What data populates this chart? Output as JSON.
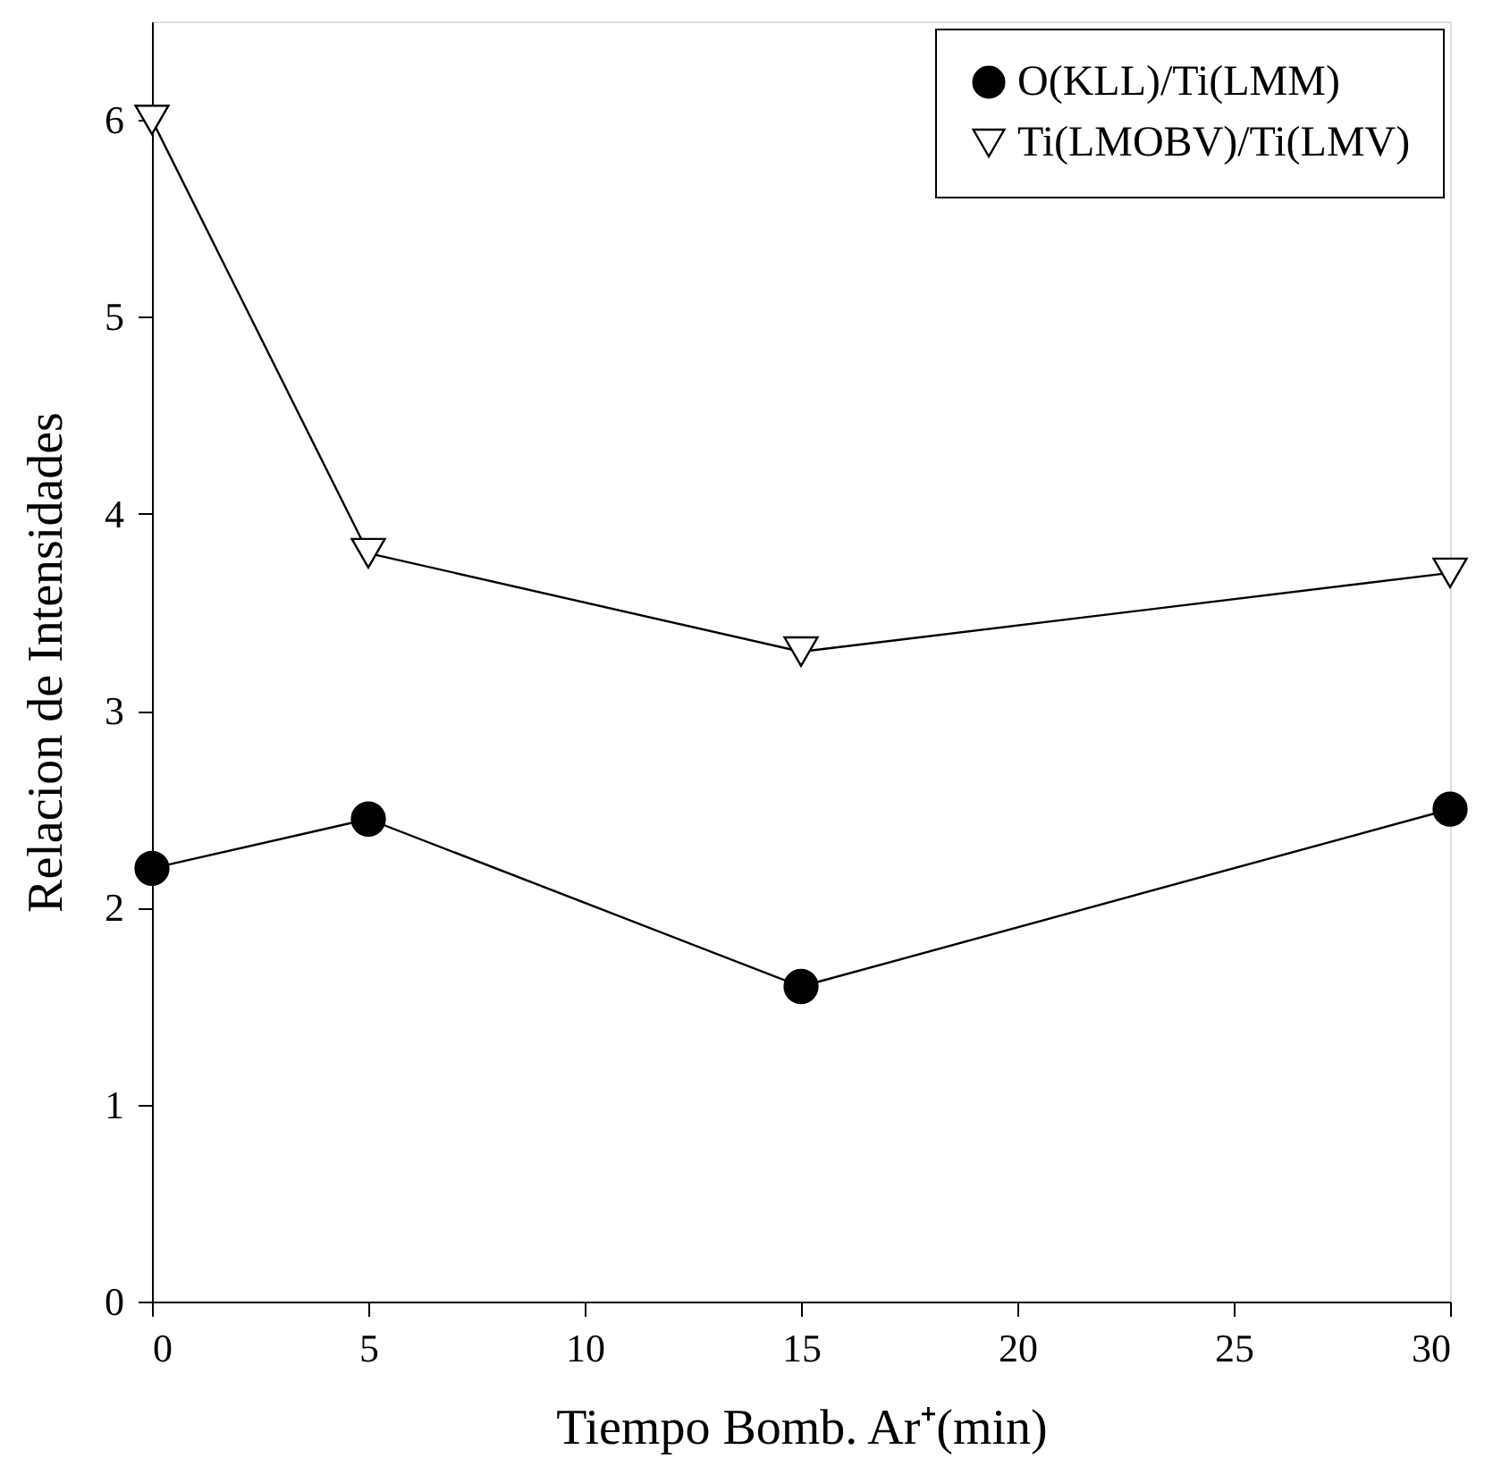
{
  "chart_data": {
    "type": "line",
    "xlabel": "Tiempo Bomb. Ar⁺(min)",
    "ylabel": "Relacion de Intensidades",
    "x": [
      0,
      5,
      15,
      30
    ],
    "series": [
      {
        "name": "O(KLL)/Ti(LMM)",
        "color": "#000000",
        "marker": "circle",
        "values": [
          2.2,
          2.45,
          1.6,
          2.5
        ]
      },
      {
        "name": "Ti(LMOBV)/Ti(LMV)",
        "color": "#000000",
        "marker": "triangle",
        "values": [
          6.0,
          3.8,
          3.3,
          3.7
        ]
      }
    ],
    "xlim": [
      0,
      30
    ],
    "xticks": [
      0,
      5,
      10,
      15,
      20,
      25,
      30
    ],
    "ylim": [
      0,
      6.5
    ],
    "yticks": [
      0,
      1,
      2,
      3,
      4,
      5,
      6
    ],
    "grid": false,
    "legend": "top right",
    "line_style": "solid"
  }
}
